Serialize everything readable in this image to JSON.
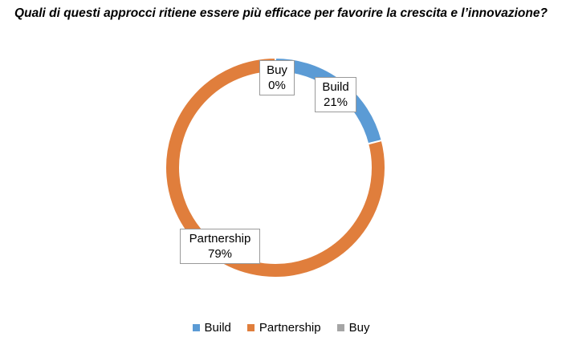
{
  "chart_data": {
    "type": "pie",
    "title": "Quali di questi approcci ritiene essere più efficace per favorire la crescita e l’innovazione?",
    "categories": [
      "Build",
      "Partnership",
      "Buy"
    ],
    "values": [
      21,
      79,
      0
    ],
    "value_labels": [
      "21%",
      "79%",
      "0%"
    ],
    "colors": [
      "#5b9bd5",
      "#e07e3c",
      "#a5a5a5"
    ],
    "donut": true,
    "legend": "bottom"
  }
}
